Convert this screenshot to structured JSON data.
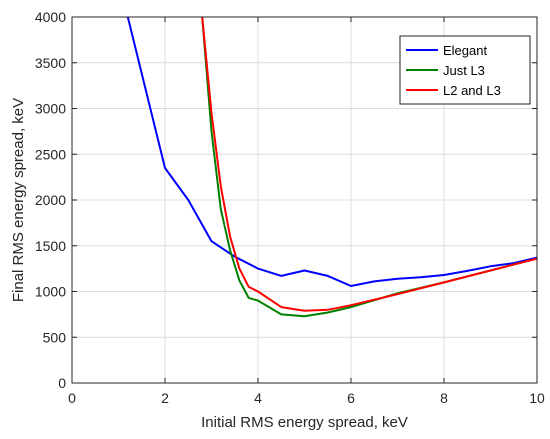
{
  "chart_data": {
    "type": "line",
    "xlabel": "Initial RMS energy spread, keV",
    "ylabel": "Final RMS energy spread, keV",
    "xlim": [
      0,
      10
    ],
    "ylim": [
      0,
      4000
    ],
    "xticks": [
      0,
      2,
      4,
      6,
      8,
      10
    ],
    "yticks": [
      0,
      500,
      1000,
      1500,
      2000,
      2500,
      3000,
      3500,
      4000
    ],
    "grid": true,
    "legend_position": "top-right",
    "series": [
      {
        "name": "Elegant",
        "color": "#0000ff",
        "x": [
          1.2,
          2.0,
          2.5,
          3.0,
          3.5,
          4.0,
          4.5,
          5.0,
          5.5,
          6.0,
          6.5,
          7.0,
          7.5,
          8.0,
          8.5,
          9.0,
          9.5,
          10.0
        ],
        "y": [
          4000,
          2350,
          2000,
          1550,
          1380,
          1250,
          1170,
          1230,
          1170,
          1060,
          1110,
          1140,
          1155,
          1180,
          1225,
          1275,
          1310,
          1370
        ]
      },
      {
        "name": "Just L3",
        "color": "#008000",
        "x": [
          2.8,
          3.0,
          3.2,
          3.4,
          3.6,
          3.8,
          4.0,
          4.5,
          5.0,
          5.5,
          6.0,
          7.0,
          8.0,
          9.0,
          10.0
        ],
        "y": [
          4000,
          2750,
          1900,
          1450,
          1120,
          930,
          900,
          750,
          730,
          770,
          830,
          980,
          1100,
          1230,
          1360
        ]
      },
      {
        "name": "L2 and L3",
        "color": "#ff0000",
        "x": [
          2.8,
          3.0,
          3.2,
          3.4,
          3.6,
          3.8,
          4.0,
          4.5,
          5.0,
          5.5,
          6.0,
          7.0,
          8.0,
          9.0,
          10.0
        ],
        "y": [
          4000,
          2950,
          2150,
          1600,
          1250,
          1050,
          1000,
          830,
          790,
          800,
          850,
          970,
          1100,
          1230,
          1360
        ]
      }
    ]
  }
}
